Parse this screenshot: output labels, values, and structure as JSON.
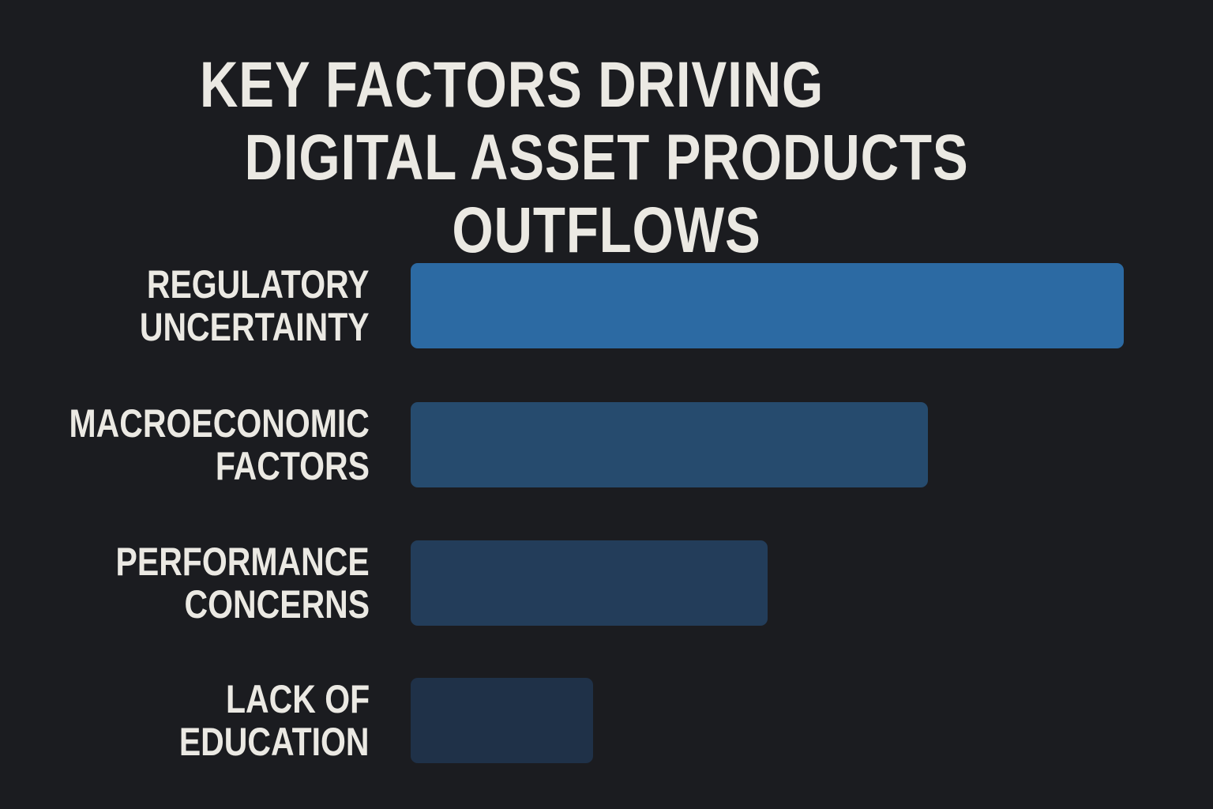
{
  "title": {
    "line1": "KEY FACTORS DRIVING",
    "line2": "DIGITAL ASSET PRODUCTS OUTFLOWS"
  },
  "bars": [
    {
      "label_line1": "REGULATORY",
      "label_line2": "UNCERTAINTY",
      "value": 100,
      "color": "#2c6aa3"
    },
    {
      "label_line1": "MACROECONOMIC",
      "label_line2": "FACTORS",
      "value": 72.5,
      "color": "#264b6e"
    },
    {
      "label_line1": "PERFORMANCE",
      "label_line2": "CONCERNS",
      "value": 50,
      "color": "#233d5a"
    },
    {
      "label_line1": "LACK OF",
      "label_line2": "EDUCATION",
      "value": 25.6,
      "color": "#1f3148"
    }
  ],
  "colors": {
    "background": "#1b1c20",
    "text": "#ebe9e3"
  },
  "chart_data": {
    "type": "bar",
    "orientation": "horizontal",
    "title": "Key Factors Driving Digital Asset Products Outflows",
    "categories": [
      "Regulatory Uncertainty",
      "Macroeconomic Factors",
      "Performance Concerns",
      "Lack of Education"
    ],
    "values": [
      100,
      72.5,
      50,
      25.6
    ],
    "xlabel": "",
    "ylabel": "",
    "xlim": [
      0,
      100
    ],
    "grid": false,
    "legend": null,
    "notes": "No axis or value labels shown; values are relative bar lengths normalized to the longest bar (100)."
  }
}
